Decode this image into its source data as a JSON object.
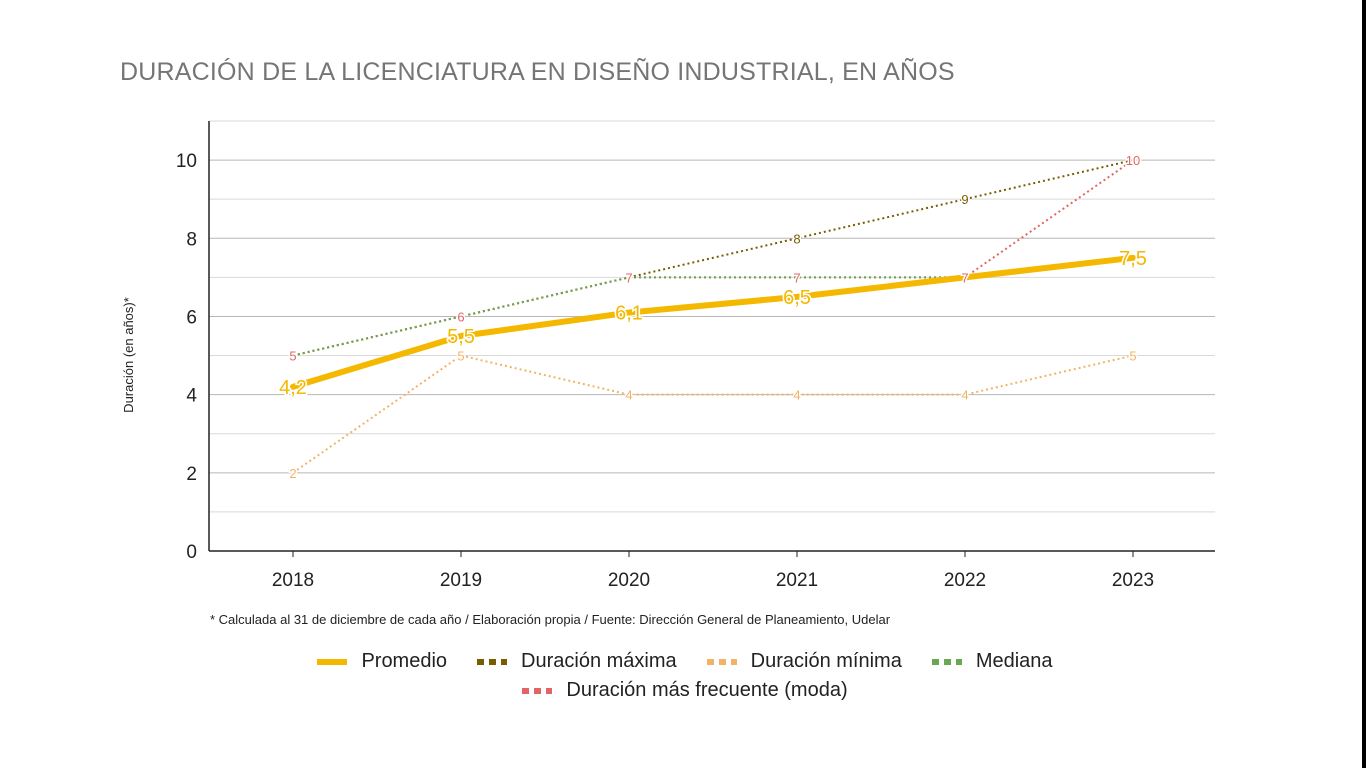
{
  "chart_data": {
    "type": "line",
    "title": "DURACIÓN DE LA LICENCIATURA EN DISEÑO INDUSTRIAL, EN AÑOS",
    "ylabel": "Duración (en años)*",
    "xlabel": "",
    "footnote": "* Calculada al 31 de diciembre de cada año / Elaboración propia / Fuente: Dirección General de Planeamiento, Udelar",
    "categories": [
      "2018",
      "2019",
      "2020",
      "2021",
      "2022",
      "2023"
    ],
    "ylim": [
      0,
      11
    ],
    "yticks": [
      0,
      2,
      4,
      6,
      8,
      10
    ],
    "grid": true,
    "legend_position": "bottom",
    "series": [
      {
        "name": "Duración máxima",
        "values": [
          5,
          6,
          7,
          8,
          9,
          10
        ],
        "labels": [
          "",
          "",
          "",
          "8",
          "9",
          ""
        ],
        "color": "#7a5c00",
        "style": "dotted"
      },
      {
        "name": "Duración mínima",
        "values": [
          2,
          5,
          4,
          4,
          4,
          5
        ],
        "labels": [
          "2",
          "5",
          "4",
          "4",
          "4",
          "5"
        ],
        "color": "#f2b366",
        "style": "dotted"
      },
      {
        "name": "Duración más frecuente (moda)",
        "values": [
          5,
          6,
          7,
          7,
          7,
          10
        ],
        "labels": [
          "5",
          "6",
          "7",
          "7",
          "7",
          "10"
        ],
        "color": "#e06666",
        "style": "dotted"
      },
      {
        "name": "Mediana",
        "values": [
          5,
          6,
          7,
          7,
          7,
          7.5
        ],
        "labels": [
          "",
          "",
          "",
          "",
          "",
          ""
        ],
        "color": "#6aa84f",
        "style": "dotted"
      },
      {
        "name": "Promedio",
        "values": [
          4.2,
          5.5,
          6.1,
          6.5,
          7,
          7.5
        ],
        "labels": [
          "4,2",
          "5,5",
          "6,1",
          "6,5",
          "",
          "7,5"
        ],
        "color": "#f5b800",
        "style": "solid"
      }
    ],
    "legend_rows": [
      [
        "Promedio",
        "Duración máxima",
        "Duración mínima",
        "Mediana"
      ],
      [
        "Duración más frecuente (moda)"
      ]
    ]
  }
}
